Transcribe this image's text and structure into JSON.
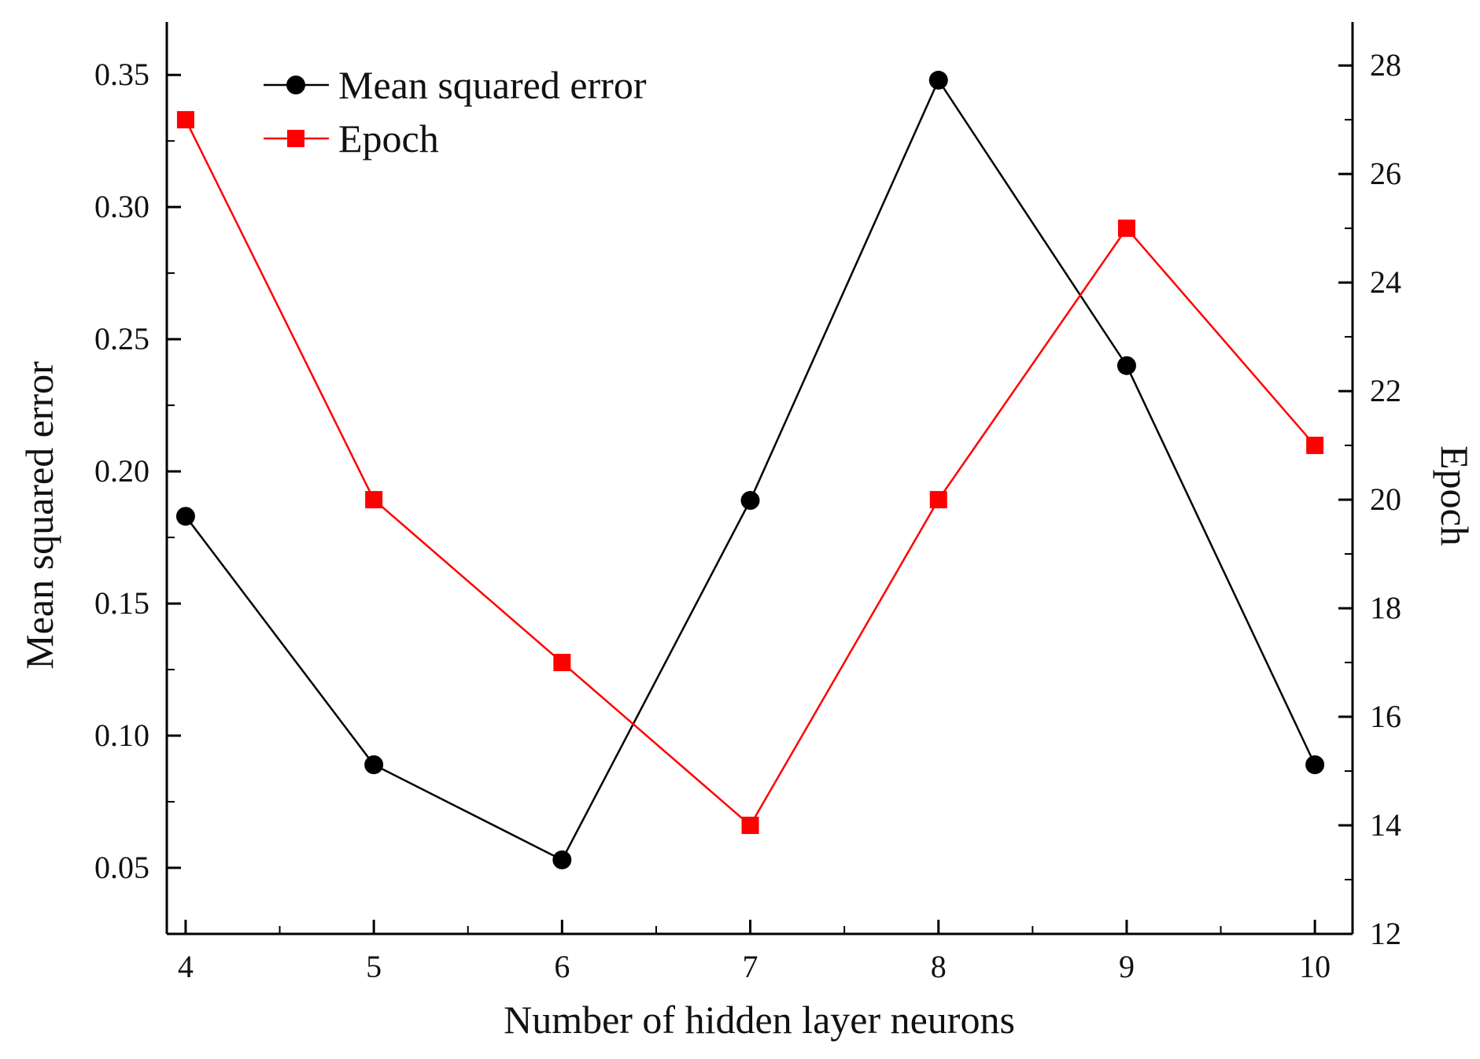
{
  "chart_data": {
    "type": "line",
    "title": "",
    "xlabel": "Number of hidden layer neurons",
    "ylabel": "Mean squared error",
    "y2label": "Epoch",
    "x": [
      4,
      5,
      6,
      7,
      8,
      9,
      10
    ],
    "xlim": [
      3.9,
      10.2
    ],
    "ylim": [
      0.025,
      0.37
    ],
    "y2lim": [
      12,
      28.8
    ],
    "x_ticks": [
      "4",
      "5",
      "6",
      "7",
      "8",
      "9",
      "10"
    ],
    "y_ticks": [
      "0.05",
      "0.10",
      "0.15",
      "0.20",
      "0.25",
      "0.30",
      "0.35"
    ],
    "y2_ticks": [
      "12",
      "14",
      "16",
      "18",
      "20",
      "22",
      "24",
      "26",
      "28"
    ],
    "grid": false,
    "legend_position": "top-left",
    "series": [
      {
        "name": "Mean squared error",
        "axis": "left",
        "marker": "circle",
        "color": "#000000",
        "values": [
          0.183,
          0.089,
          0.053,
          0.189,
          0.348,
          0.24,
          0.089
        ]
      },
      {
        "name": "Epoch",
        "axis": "right",
        "marker": "square",
        "color": "#ff0000",
        "values": [
          27,
          20,
          17,
          14,
          20,
          25,
          21
        ]
      }
    ]
  }
}
